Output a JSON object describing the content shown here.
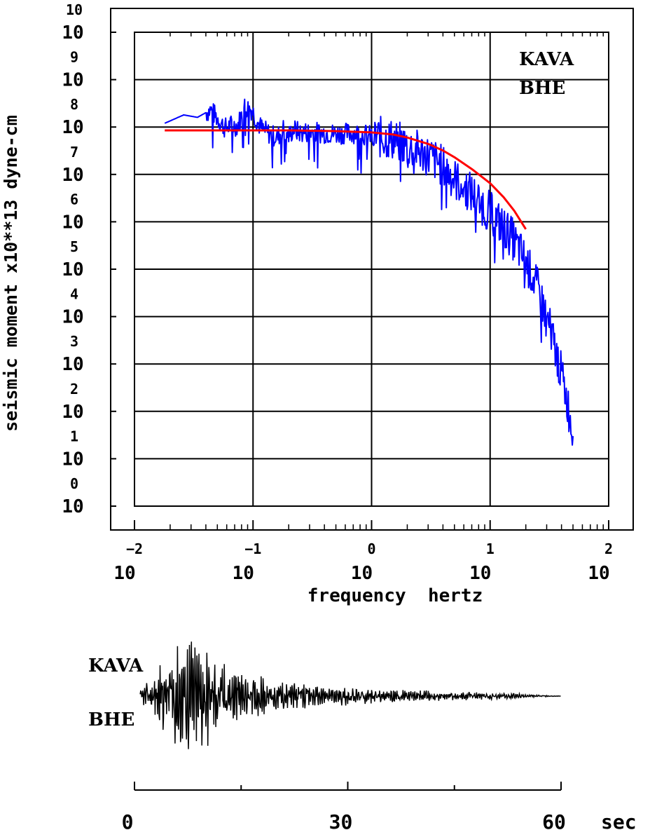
{
  "chart_data": [
    {
      "type": "line",
      "title": "",
      "station": "KAVA",
      "channel": "BHE",
      "xlabel": "frequency  hertz",
      "ylabel": "seismic moment x10**13 dyne-cm",
      "x_scale": "log",
      "y_scale": "log",
      "xlim": [
        0.01,
        100
      ],
      "ylim": [
        1,
        10000000000
      ],
      "grid": true,
      "x_ticks": [
        {
          "base": "10",
          "exp": "−2"
        },
        {
          "base": "10",
          "exp": "−1"
        },
        {
          "base": "10",
          "exp": "0"
        },
        {
          "base": "10",
          "exp": "1"
        },
        {
          "base": "10",
          "exp": "2"
        }
      ],
      "y_ticks": [
        {
          "base": "10",
          "exp": "0"
        },
        {
          "base": "10",
          "exp": "1"
        },
        {
          "base": "10",
          "exp": "2"
        },
        {
          "base": "10",
          "exp": "3"
        },
        {
          "base": "10",
          "exp": "4"
        },
        {
          "base": "10",
          "exp": "5"
        },
        {
          "base": "10",
          "exp": "6"
        },
        {
          "base": "10",
          "exp": "7"
        },
        {
          "base": "10",
          "exp": "8"
        },
        {
          "base": "10",
          "exp": "9"
        },
        {
          "base": "10",
          "exp": "10"
        }
      ],
      "series": [
        {
          "role": "observed spectrum",
          "color": "#0000ff",
          "x": [
            0.018,
            0.026,
            0.034,
            0.044,
            0.058,
            0.066,
            0.074,
            0.085,
            0.098,
            0.11,
            0.12,
            0.14,
            0.16,
            0.18,
            0.2,
            0.22,
            0.25,
            0.3,
            0.4,
            0.5,
            0.7,
            1.0,
            1.5,
            2.0,
            3.0,
            4.0,
            5.0,
            7.0,
            10.0,
            15.0,
            20.0,
            25.0,
            30.0,
            35.0,
            40.0,
            45.0,
            50.0
          ],
          "y": [
            120000000,
            180000000,
            160000000,
            230000000,
            95000000,
            110000000,
            105000000,
            270000000,
            230000000,
            120000000,
            90000000,
            70000000,
            60000000,
            90000000,
            65000000,
            90000000,
            75000000,
            80000000,
            75000000,
            72000000,
            75000000,
            65000000,
            55000000,
            40000000,
            25000000,
            15000000,
            8000000,
            4000000,
            1600000,
            500000,
            150000,
            40000,
            10000,
            2500,
            600,
            150,
            30
          ]
        },
        {
          "role": "model fit",
          "color": "#ff0000",
          "x": [
            0.018,
            0.05,
            0.1,
            0.2,
            0.5,
            1.0,
            1.5,
            2.0,
            3.0,
            4.0,
            5.0,
            7.0,
            10.0,
            13.0,
            16.0,
            20.0
          ],
          "y": [
            85000000,
            85000000,
            85000000,
            85000000,
            82000000,
            77000000,
            70000000,
            60000000,
            44000000,
            32000000,
            23000000,
            13000000,
            6500000,
            3300000,
            1700000,
            700000
          ]
        }
      ]
    },
    {
      "type": "line",
      "title": "",
      "station": "KAVA",
      "channel": "BHE",
      "xlabel": "sec",
      "x_ticks": [
        "0",
        "30",
        "60"
      ],
      "xlim": [
        0,
        60
      ],
      "series": [
        {
          "role": "seismogram",
          "color": "#000000",
          "x": [
            1,
            3,
            5,
            7,
            9,
            10,
            12,
            15,
            18,
            22,
            26,
            30,
            35,
            40,
            45,
            50,
            54,
            56,
            60
          ],
          "y": [
            0.1,
            0.4,
            0.7,
            1.0,
            0.9,
            0.8,
            0.55,
            0.4,
            0.3,
            0.22,
            0.17,
            0.14,
            0.11,
            0.09,
            0.07,
            0.06,
            0.04,
            0.02,
            0.0
          ]
        }
      ]
    }
  ]
}
